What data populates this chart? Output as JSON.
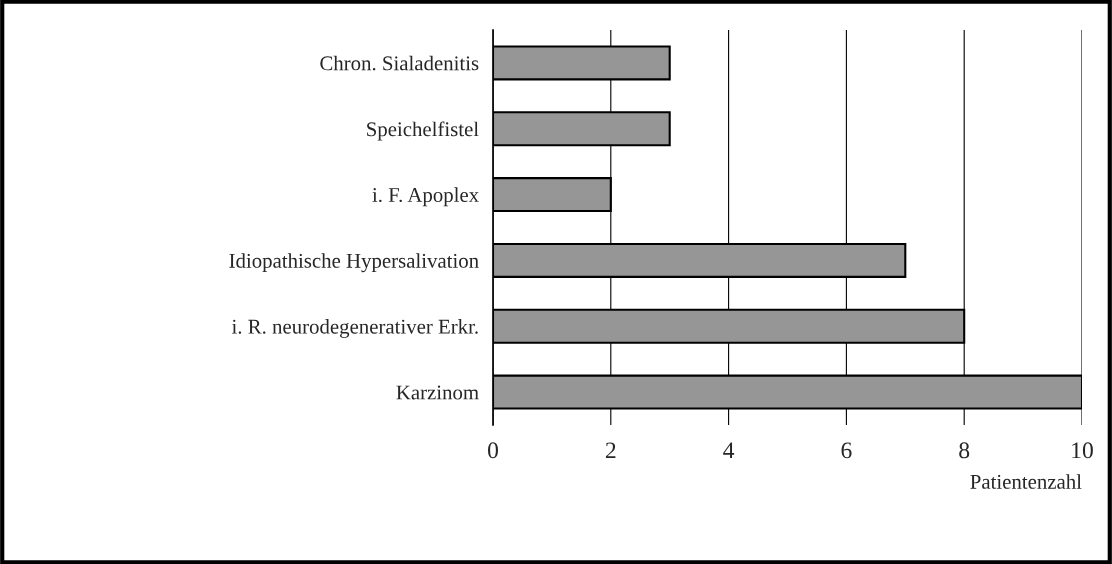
{
  "chart_data": {
    "type": "bar",
    "orientation": "horizontal",
    "xlabel": "Patientenzahl",
    "categories": [
      "Chron. Sialadenitis",
      "Speichelfistel",
      "i. F. Apoplex",
      "Idiopathische Hypersalivation",
      "i. R. neurodegenerativer Erkr.",
      "Karzinom"
    ],
    "values": [
      3,
      3,
      2,
      7,
      8,
      10
    ],
    "color": "#969696",
    "xlim": [
      0,
      10
    ],
    "xticks": [
      0,
      2,
      4,
      6,
      8,
      10
    ],
    "grid": "x",
    "legend": false
  }
}
